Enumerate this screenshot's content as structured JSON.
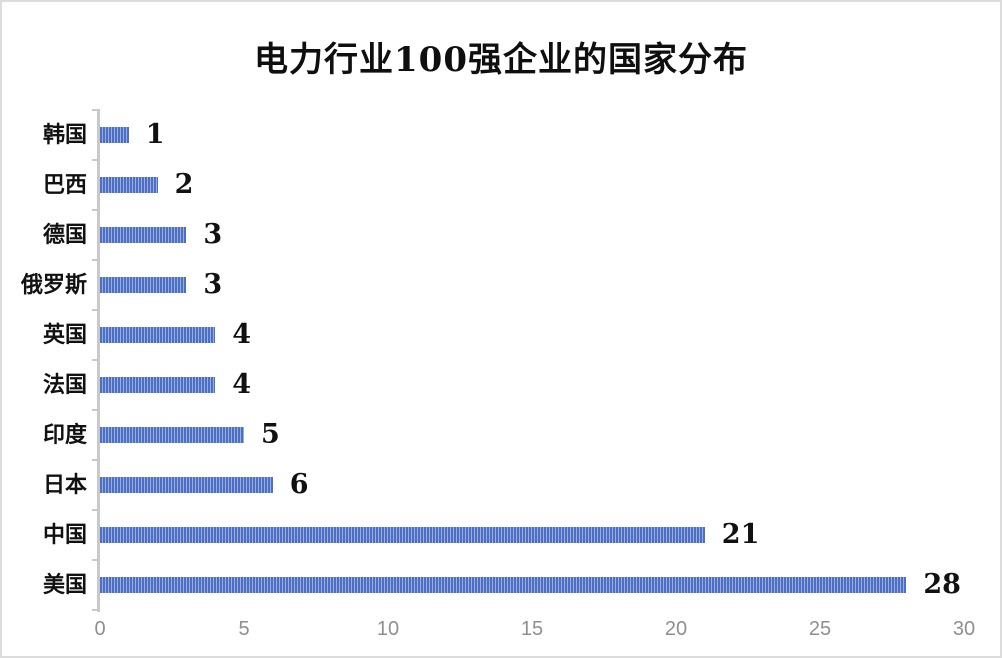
{
  "page": {
    "background_color": "#ffffff",
    "border_color": "#dcdcdc"
  },
  "chart_data": {
    "type": "bar",
    "orientation": "horizontal",
    "title": "电力行业100强企业的国家分布",
    "categories": [
      "韩国",
      "巴西",
      "德国",
      "俄罗斯",
      "英国",
      "法国",
      "印度",
      "日本",
      "中国",
      "美国"
    ],
    "values": [
      1,
      2,
      3,
      3,
      4,
      4,
      5,
      6,
      21,
      28
    ],
    "data_labels": [
      "1",
      "2",
      "3",
      "3",
      "4",
      "4",
      "5",
      "6",
      "21",
      "28"
    ],
    "category_order": "top-to-bottom",
    "xlabel": "",
    "ylabel": "",
    "xlim": [
      0,
      30
    ],
    "x_ticks": [
      0,
      5,
      10,
      15,
      20,
      25,
      30
    ],
    "x_tick_labels": [
      "0",
      "5",
      "10",
      "15",
      "20",
      "25",
      "30"
    ],
    "grid": false,
    "legend": false,
    "bar_fill_style": "vertical-stripes",
    "bar_color": "#4a6fc6",
    "bar_stripe_color": "#9fadd9",
    "axis_line_color": "#c9c9c9",
    "x_tick_label_color": "#8f8f8f",
    "text_color": "#111111"
  }
}
